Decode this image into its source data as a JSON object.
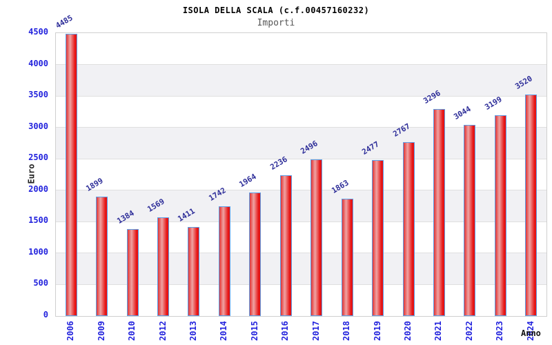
{
  "header": {
    "title": "ISOLA DELLA SCALA (c.f.00457160232)",
    "subtitle": "Importi"
  },
  "chart_data": {
    "type": "bar",
    "title": "ISOLA DELLA SCALA (c.f.00457160232)",
    "subtitle": "Importi",
    "categories": [
      "2006",
      "2009",
      "2010",
      "2012",
      "2013",
      "2014",
      "2015",
      "2016",
      "2017",
      "2018",
      "2019",
      "2020",
      "2021",
      "2022",
      "2023",
      "2024"
    ],
    "values": [
      4485,
      1899,
      1384,
      1569,
      1411,
      1742,
      1964,
      2236,
      2496,
      1863,
      2477,
      2767,
      3296,
      3044,
      3199,
      3520
    ],
    "xlabel": "Anno",
    "ylabel": "Euro",
    "ylim": [
      0,
      4500
    ],
    "ytick_step": 500,
    "yticks": [
      0,
      500,
      1000,
      1500,
      2000,
      2500,
      3000,
      3500,
      4000,
      4500
    ],
    "grid": "horizontal gridlines every 500 with alternating white/gray bands",
    "legend_position": "none",
    "value_labels": "above each bar, rotated ~31deg counterclockwise",
    "x_tick_rotation": "-90deg (reading bottom to top)"
  },
  "colors": {
    "background": "#ffffff",
    "title": "#000000",
    "subtitle": "#555555",
    "axis_tick_label": "#2222dd",
    "value_label": "#2e2e99",
    "axis_title": "#222222",
    "bar_border": "#5b9ee8",
    "bar_gradient_left": "#e23434",
    "bar_gradient_mid": "#efa3a3",
    "bar_gradient_right": "#e61414",
    "plot_band": "#f1f1f4",
    "gridline": "#dfdfdf",
    "plot_border": "#cfcfcf"
  }
}
